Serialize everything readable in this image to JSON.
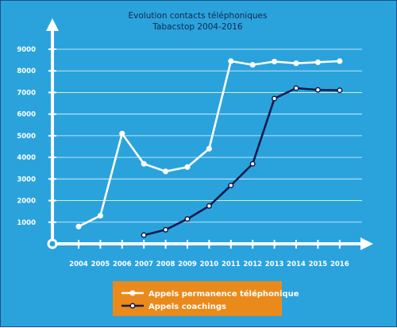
{
  "chart_data": {
    "type": "line",
    "title_lines": [
      "Evolution contacts téléphoniques",
      "Tabacstop 2004-2016"
    ],
    "xlabel": "",
    "ylabel": "",
    "x": [
      "2004",
      "2005",
      "2006",
      "2007",
      "2008",
      "2009",
      "2010",
      "2011",
      "2012",
      "2013",
      "2014",
      "2015",
      "2016"
    ],
    "y_ticks": [
      "1000",
      "2000",
      "3000",
      "4000",
      "5000",
      "6000",
      "7000",
      "8000",
      "9000"
    ],
    "ylim": [
      0,
      9000
    ],
    "grid": true,
    "legend_position": "bottom-center",
    "series": [
      {
        "name": "Appels permanence téléphonique",
        "color": "#ffffff",
        "marker_fill": "#ffffff",
        "values": [
          800,
          1300,
          5100,
          3700,
          3350,
          3550,
          4400,
          8450,
          8280,
          8430,
          8350,
          8400,
          8450
        ]
      },
      {
        "name": "Appels coachings",
        "color": "#141a4e",
        "marker_fill": "#ffffff",
        "values": [
          null,
          null,
          null,
          400,
          650,
          1150,
          1750,
          2700,
          3700,
          6720,
          7200,
          7120,
          7100
        ]
      }
    ],
    "colors": {
      "background": "#2aa3dd",
      "axis": "#ffffff",
      "grid": "#ffffff",
      "title": "#12284a",
      "legend_box": "#ea8a1b"
    }
  }
}
